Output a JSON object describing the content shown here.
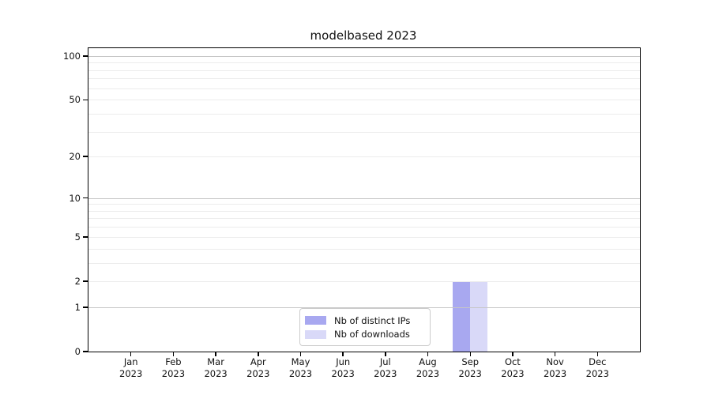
{
  "chart_data": {
    "type": "bar",
    "title": "modelbased 2023",
    "categories": [
      "Jan",
      "Feb",
      "Mar",
      "Apr",
      "May",
      "Jun",
      "Jul",
      "Aug",
      "Sep",
      "Oct",
      "Nov",
      "Dec"
    ],
    "year_label": "2023",
    "series": [
      {
        "name": "Nb of distinct IPs",
        "color": "#a8a8f0",
        "values": [
          0,
          0,
          0,
          0,
          0,
          0,
          0,
          0,
          2,
          0,
          0,
          0
        ]
      },
      {
        "name": "Nb of downloads",
        "color": "#d9d9f8",
        "values": [
          0,
          0,
          0,
          0,
          0,
          0,
          0,
          0,
          2,
          0,
          0,
          0
        ]
      }
    ],
    "yscale": "log1p",
    "ylim": [
      0,
      113
    ],
    "ytick_values": [
      0,
      1,
      2,
      5,
      10,
      20,
      50,
      100
    ],
    "ytick_labels": [
      "0",
      "1",
      "2",
      "5",
      "10",
      "20",
      "50",
      "100"
    ],
    "major_grid_values": [
      1,
      10,
      100
    ],
    "minor_grid_values": [
      2,
      3,
      4,
      5,
      6,
      7,
      8,
      9,
      20,
      30,
      40,
      50,
      60,
      70,
      80,
      90
    ],
    "grid": "on",
    "legend_position": "lower center",
    "colors": {
      "spine": "#000000",
      "grid_major": "#c6c6c6",
      "grid_minor": "#ececec",
      "background": "#ffffff"
    }
  }
}
